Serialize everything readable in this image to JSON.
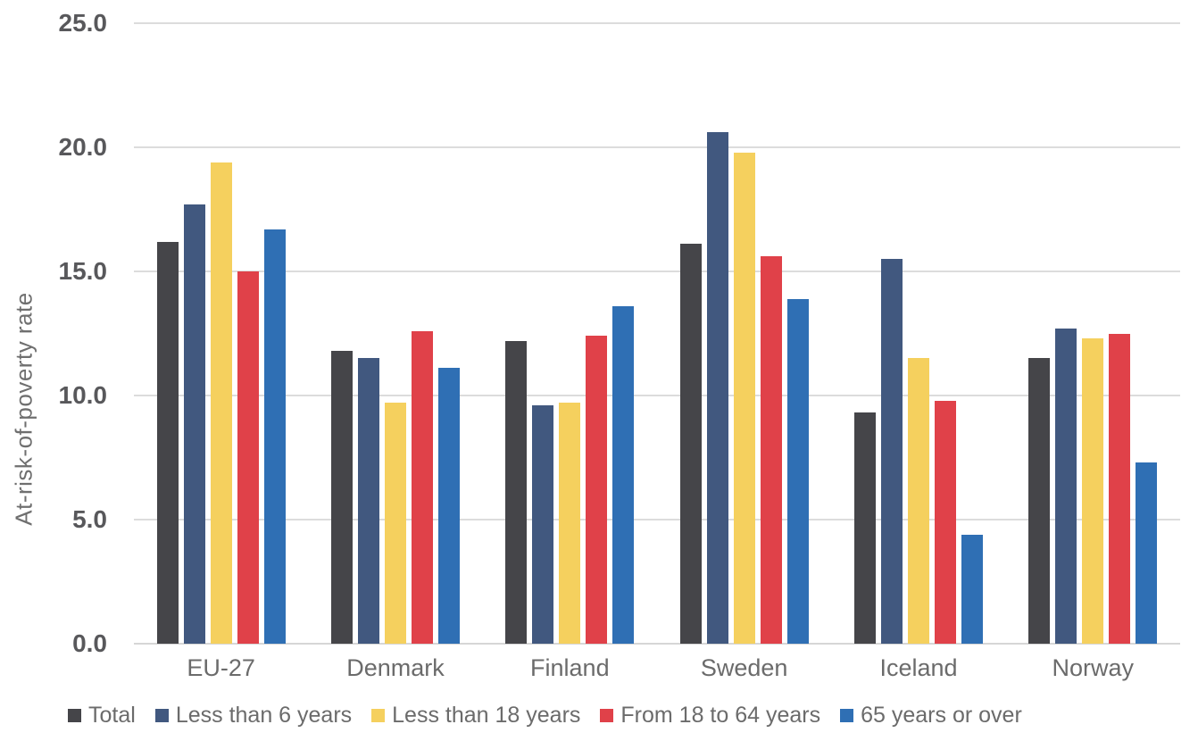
{
  "chart_data": {
    "type": "bar",
    "title": "",
    "xlabel": "",
    "ylabel": "At-risk-of-poverty rate",
    "ylim": [
      0,
      25
    ],
    "ytick_step": 5,
    "yticks": [
      "0.0",
      "5.0",
      "10.0",
      "15.0",
      "20.0",
      "25.0"
    ],
    "grid": true,
    "legend_position": "bottom",
    "categories": [
      "EU-27",
      "Denmark",
      "Finland",
      "Sweden",
      "Iceland",
      "Norway"
    ],
    "series": [
      {
        "name": "Total",
        "color": "#454549",
        "values": [
          16.2,
          11.8,
          12.2,
          16.1,
          9.3,
          11.5
        ]
      },
      {
        "name": "Less than 6 years",
        "color": "#41587f",
        "values": [
          17.7,
          11.5,
          9.6,
          20.6,
          15.5,
          12.7
        ]
      },
      {
        "name": "Less than 18 years",
        "color": "#f5d05e",
        "values": [
          19.4,
          9.7,
          9.7,
          19.8,
          11.5,
          12.3
        ]
      },
      {
        "name": "From 18 to 64 years",
        "color": "#e04149",
        "values": [
          15.0,
          12.6,
          12.4,
          15.6,
          9.8,
          12.5
        ]
      },
      {
        "name": "65 years or over",
        "color": "#2f6fb4",
        "values": [
          16.7,
          11.1,
          13.6,
          13.9,
          4.4,
          7.3
        ]
      }
    ]
  },
  "colors": {
    "gridline": "#dcdcdc",
    "tick_label": "#58585b",
    "axis_label": "#6f6f6f",
    "category_label": "#6b6b6b"
  }
}
